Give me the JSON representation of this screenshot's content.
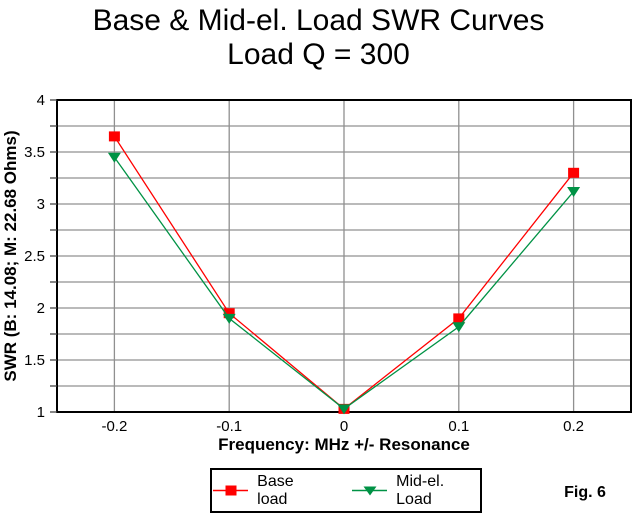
{
  "title": "Base & Mid-el. Load SWR Curves",
  "subtitle": "Load Q = 300",
  "fig_label": "Fig. 6",
  "colors": {
    "background": "#ffffff",
    "gridline": "#909090",
    "axis": "#000000",
    "tick": "#444444",
    "base_load": "#ff0000",
    "mid_el_load": "#009245"
  },
  "chart_data": {
    "type": "line",
    "title": "Base & Mid-el. Load SWR Curves",
    "subtitle": "Load Q = 300",
    "xlabel": "Frequency:  MHz +/- Resonance",
    "ylabel": "SWR (B: 14.08; M: 22.68 Ohms)",
    "categories": [
      "-0.2",
      "-0.1",
      "0",
      "0.1",
      "0.2"
    ],
    "x_tick_labels": [
      "-0.2",
      "-0.1",
      "0",
      "0.1",
      "0.2"
    ],
    "ylim": [
      1,
      4
    ],
    "y_major_tick_step": 0.5,
    "y_minor_tick_step": 0.25,
    "y_tick_labels": [
      "1",
      "1.5",
      "2",
      "2.5",
      "3",
      "3.5",
      "4"
    ],
    "grid": true,
    "legend_position": "bottom",
    "series": [
      {
        "name": "Base load",
        "color": "#ff0000",
        "marker": "square",
        "values": [
          3.65,
          1.95,
          1.03,
          1.9,
          3.3
        ]
      },
      {
        "name": "Mid-el. Load",
        "color": "#009245",
        "marker": "triangle-down",
        "values": [
          3.45,
          1.9,
          1.03,
          1.82,
          3.12
        ]
      }
    ]
  }
}
